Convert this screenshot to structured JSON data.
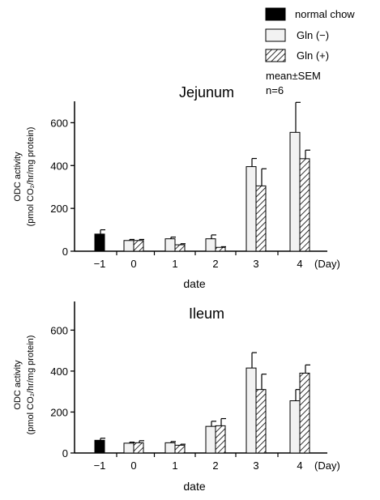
{
  "legend": {
    "items": [
      {
        "label": "normal chow",
        "style": "solid"
      },
      {
        "label": "Gln (−)",
        "style": "open"
      },
      {
        "label": "Gln (+)",
        "style": "hatched"
      }
    ],
    "note_line1": "mean±SEM",
    "note_line2": "n=6"
  },
  "colors": {
    "solid": "#000000",
    "open": "#f2f2f2",
    "hatch": "#000000",
    "axis": "#000000"
  },
  "chart_data": [
    {
      "type": "bar",
      "title": "Jejunum",
      "xlabel": "date",
      "ylabel": "ODC activity",
      "ylabel_line2": "(pmol CO₂/hr/mg protein)",
      "x_unit": "(Day)",
      "categories": [
        "−1",
        "0",
        "1",
        "2",
        "3",
        "4"
      ],
      "yticks": [
        "0",
        "200",
        "400",
        "600"
      ],
      "ylim": [
        0,
        700
      ],
      "grid": false,
      "series": [
        {
          "name": "normal chow",
          "values": [
            80,
            null,
            null,
            null,
            null,
            null
          ],
          "errors": [
            20,
            null,
            null,
            null,
            null,
            null
          ]
        },
        {
          "name": "Gln (−)",
          "values": [
            null,
            50,
            58,
            58,
            395,
            555
          ],
          "errors": [
            null,
            5,
            8,
            18,
            38,
            140
          ]
        },
        {
          "name": "Gln (+)",
          "values": [
            null,
            50,
            30,
            18,
            305,
            432
          ],
          "errors": [
            null,
            5,
            5,
            3,
            80,
            40
          ]
        }
      ]
    },
    {
      "type": "bar",
      "title": "Ileum",
      "xlabel": "date",
      "ylabel": "ODC activity",
      "ylabel_line2": "(pmol CO₂/hr/mg protein)",
      "x_unit": "(Day)",
      "categories": [
        "−1",
        "0",
        "1",
        "2",
        "3",
        "4"
      ],
      "yticks": [
        "0",
        "200",
        "400",
        "600"
      ],
      "ylim": [
        0,
        740
      ],
      "grid": false,
      "series": [
        {
          "name": "normal chow",
          "values": [
            62,
            null,
            null,
            null,
            null,
            null
          ],
          "errors": [
            10,
            null,
            null,
            null,
            null,
            null
          ]
        },
        {
          "name": "Gln (−)",
          "values": [
            null,
            48,
            50,
            130,
            415,
            255
          ],
          "errors": [
            null,
            5,
            6,
            25,
            75,
            55
          ]
        },
        {
          "name": "Gln (+)",
          "values": [
            null,
            50,
            38,
            133,
            310,
            390
          ],
          "errors": [
            null,
            10,
            5,
            35,
            75,
            40
          ]
        }
      ]
    }
  ]
}
